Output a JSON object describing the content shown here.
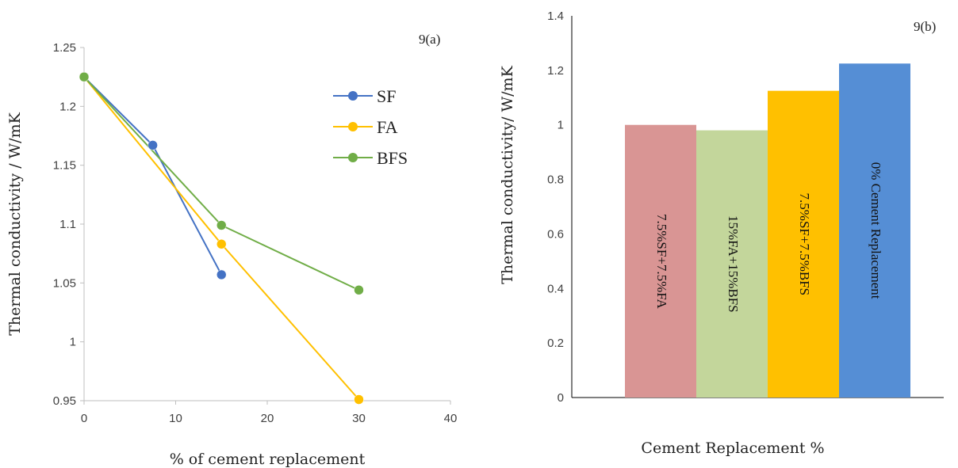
{
  "chart_data": [
    {
      "type": "line",
      "panel_label": "9(a)",
      "xlabel": "% of cement replacement",
      "ylabel": "Thermal conductivity /  W/mK",
      "xlim": [
        0,
        40
      ],
      "ylim": [
        0.95,
        1.25
      ],
      "xticks": [
        "0",
        "10",
        "20",
        "30",
        "40"
      ],
      "yticks": [
        "0.95",
        "1",
        "1.05",
        "1.1",
        "1.15",
        "1.2",
        "1.25"
      ],
      "grid": false,
      "legend_position": "right",
      "series": [
        {
          "name": "SF",
          "color": "#4472C4",
          "x": [
            0,
            7.5,
            15
          ],
          "y": [
            1.225,
            1.167,
            1.057
          ]
        },
        {
          "name": "FA",
          "color": "#FFC000",
          "x": [
            0,
            15,
            30
          ],
          "y": [
            1.225,
            1.083,
            0.951
          ]
        },
        {
          "name": "BFS",
          "color": "#70AD47",
          "x": [
            0,
            15,
            30
          ],
          "y": [
            1.225,
            1.099,
            1.044
          ]
        }
      ]
    },
    {
      "type": "bar",
      "panel_label": "9(b)",
      "xlabel": "Cement Replacement %",
      "ylabel": "Thermal conductivity/  W/mK",
      "ylim": [
        0,
        1.4
      ],
      "yticks": [
        "0",
        "0.2",
        "0.4",
        "0.6",
        "0.8",
        "1",
        "1.2",
        "1.4"
      ],
      "grid": false,
      "categories": [
        "7.5%SF+7.5%FA",
        "15%FA+15%BFS",
        "7.5%SF+7.5%BFS",
        "0% Cement Replacement"
      ],
      "values": [
        1.0,
        0.98,
        1.125,
        1.225
      ],
      "colors": [
        "#D99594",
        "#C3D69B",
        "#FFC000",
        "#558ED5"
      ]
    }
  ]
}
